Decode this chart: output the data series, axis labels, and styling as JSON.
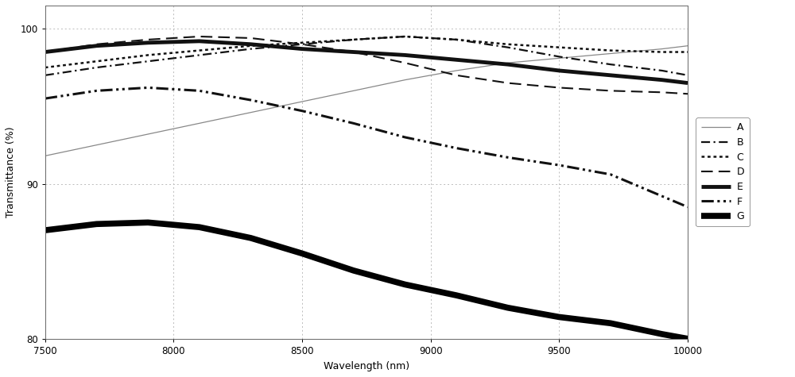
{
  "title": "",
  "xlabel": "Wavelength (nm)",
  "ylabel": "Transmittance (%)",
  "xlim": [
    7500,
    10000
  ],
  "ylim": [
    80,
    101.5
  ],
  "yticks": [
    80,
    90,
    100
  ],
  "xticks": [
    7500,
    8000,
    8500,
    9000,
    9500,
    10000
  ],
  "grid_color": "#bbbbbb",
  "background_color": "#ffffff",
  "series": {
    "A": {
      "style": "solid",
      "color": "#888888",
      "linewidth": 0.9,
      "x": [
        7500,
        7700,
        7900,
        8100,
        8300,
        8500,
        8700,
        8900,
        9100,
        9300,
        9500,
        9700,
        9900,
        10000
      ],
      "y": [
        91.8,
        92.5,
        93.2,
        93.9,
        94.6,
        95.3,
        96.0,
        96.7,
        97.3,
        97.8,
        98.1,
        98.4,
        98.7,
        98.9
      ]
    },
    "B": {
      "style": "dashdot_fine",
      "color": "#111111",
      "linewidth": 1.6,
      "x": [
        7500,
        7700,
        7900,
        8100,
        8300,
        8500,
        8700,
        8900,
        9100,
        9300,
        9500,
        9700,
        9900,
        10000
      ],
      "y": [
        97.0,
        97.5,
        97.9,
        98.3,
        98.7,
        99.0,
        99.3,
        99.5,
        99.3,
        98.8,
        98.2,
        97.7,
        97.3,
        97.0
      ]
    },
    "C": {
      "style": "dotted",
      "color": "#111111",
      "linewidth": 1.8,
      "x": [
        7500,
        7700,
        7900,
        8100,
        8300,
        8500,
        8700,
        8900,
        9100,
        9300,
        9500,
        9700,
        9900,
        10000
      ],
      "y": [
        97.5,
        97.9,
        98.3,
        98.6,
        98.9,
        99.1,
        99.3,
        99.5,
        99.3,
        99.0,
        98.8,
        98.6,
        98.5,
        98.5
      ]
    },
    "D": {
      "style": "dashed",
      "color": "#111111",
      "linewidth": 1.5,
      "x": [
        7500,
        7700,
        7900,
        8100,
        8300,
        8500,
        8700,
        8900,
        9100,
        9300,
        9500,
        9700,
        9900,
        10000
      ],
      "y": [
        98.5,
        99.0,
        99.3,
        99.5,
        99.4,
        99.0,
        98.5,
        97.8,
        97.0,
        96.5,
        96.2,
        96.0,
        95.9,
        95.8
      ]
    },
    "E": {
      "style": "solid",
      "color": "#111111",
      "linewidth": 3.5,
      "x": [
        7500,
        7700,
        7900,
        8100,
        8300,
        8500,
        8700,
        8900,
        9100,
        9300,
        9500,
        9700,
        9900,
        10000
      ],
      "y": [
        98.5,
        98.9,
        99.1,
        99.2,
        99.0,
        98.7,
        98.5,
        98.3,
        98.0,
        97.7,
        97.3,
        97.0,
        96.7,
        96.5
      ]
    },
    "F": {
      "style": "dashdotdot",
      "color": "#111111",
      "linewidth": 2.2,
      "x": [
        7500,
        7700,
        7900,
        8100,
        8300,
        8500,
        8700,
        8900,
        9100,
        9300,
        9500,
        9700,
        9900,
        10000
      ],
      "y": [
        95.5,
        96.0,
        96.2,
        96.0,
        95.4,
        94.7,
        93.9,
        93.0,
        92.3,
        91.7,
        91.2,
        90.6,
        89.2,
        88.5
      ]
    },
    "G": {
      "style": "solid",
      "color": "#000000",
      "linewidth": 5.5,
      "x": [
        7500,
        7700,
        7900,
        8100,
        8300,
        8500,
        8700,
        8900,
        9100,
        9300,
        9500,
        9700,
        9900,
        10000
      ],
      "y": [
        87.0,
        87.4,
        87.5,
        87.2,
        86.5,
        85.5,
        84.4,
        83.5,
        82.8,
        82.0,
        81.4,
        81.0,
        80.3,
        80.0
      ]
    }
  }
}
